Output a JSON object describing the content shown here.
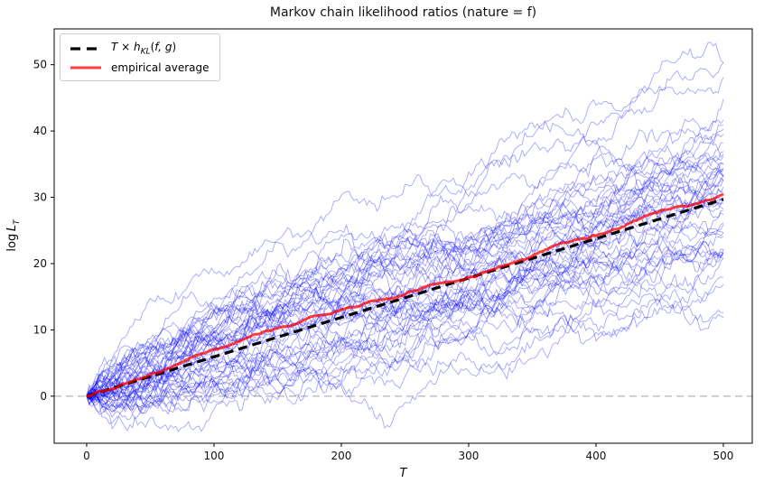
{
  "chart_data": {
    "type": "line",
    "title": "Markov chain likelihood ratios (nature = f)",
    "xlabel": "T",
    "ylabel": "log L_T",
    "ylabel_parts": {
      "prefix": "log",
      "var": "L",
      "sub": "T"
    },
    "xlim": [
      -25.5,
      522.7
    ],
    "ylim": [
      -7.1,
      55.4
    ],
    "x_ticks": [
      0,
      100,
      200,
      300,
      400,
      500
    ],
    "y_ticks": [
      0,
      10,
      20,
      30,
      40,
      50
    ],
    "grid": false,
    "legend_position": "upper left",
    "series": [
      {
        "name": "T × h_KL(f, g)",
        "style": "dashed",
        "color": "#000000",
        "linewidth": 3.2,
        "points": [
          [
            0,
            0
          ],
          [
            500,
            29.7
          ]
        ]
      },
      {
        "name": "empirical average",
        "style": "solid",
        "color": "#ff0000",
        "alpha": 0.75,
        "linewidth": 3,
        "derived": "mean of trajectories",
        "points": [
          [
            0,
            0
          ],
          [
            500,
            29.7
          ]
        ]
      }
    ],
    "reference_lines": [
      {
        "axis": "y",
        "value": 0,
        "style": "dashed",
        "color": "#b3b3b3",
        "linewidth": 1.2
      }
    ],
    "trajectories": {
      "description": "sample paths of log-likelihood ratio log L_T under nature f",
      "count": 50,
      "color": "#0000ff",
      "alpha": 0.35,
      "linewidth": 0.9,
      "t_max": 500,
      "t_step": 2,
      "drift_per_t": 0.0594,
      "noise_std_per_t": 0.45,
      "seed": 42,
      "start_value": 0,
      "approx_endpoint_range": [
        14,
        52
      ],
      "approx_min_value": -5
    },
    "kl_slope": 0.0594
  },
  "axes": {
    "x_tick_labels": [
      "0",
      "100",
      "200",
      "300",
      "400",
      "500"
    ],
    "y_tick_labels": [
      "0",
      "10",
      "20",
      "30",
      "40",
      "50"
    ]
  },
  "legend": {
    "theory": {
      "var_t": "T",
      "times": " × ",
      "h": "h",
      "sub": "KL",
      "args_open": "(",
      "args_vars": "f, g",
      "args_close": ")"
    },
    "empirical": {
      "label": "empirical average"
    }
  },
  "layout_colors": {
    "spine": "#000000",
    "tick_label": "#111111",
    "legend_border": "#cccccc"
  }
}
